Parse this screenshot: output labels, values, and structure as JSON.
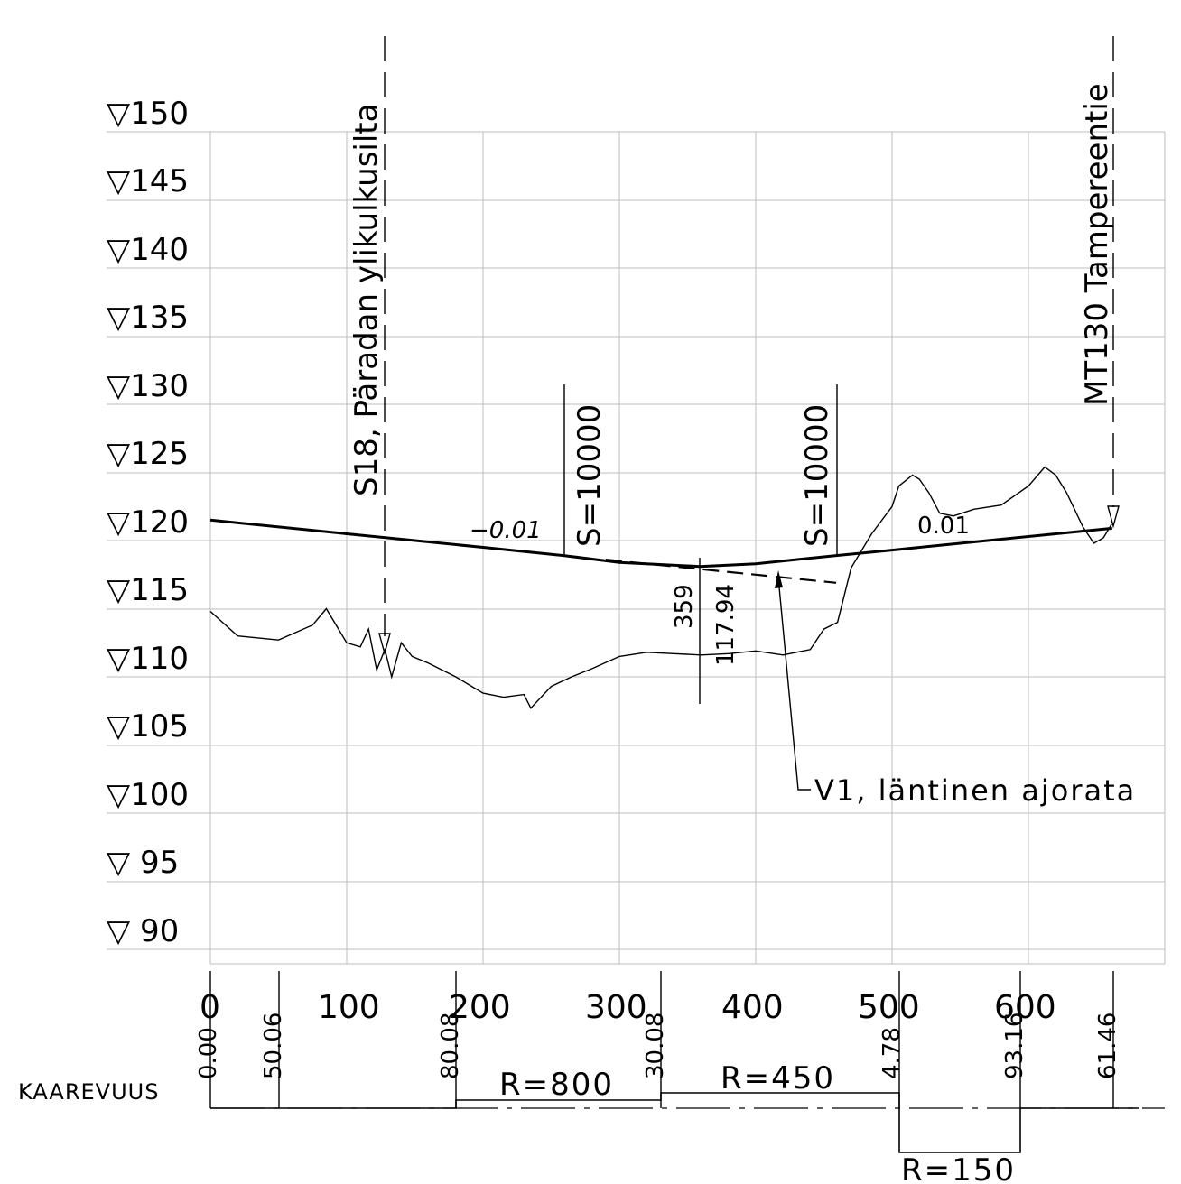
{
  "elevation_labels": [
    "▽150",
    "▽145",
    "▽140",
    "▽135",
    "▽130",
    "▽125",
    "▽120",
    "▽115",
    "▽110",
    "▽105",
    "▽100",
    "▽ 95",
    "▽ 90"
  ],
  "distance_labels": [
    "0",
    "100",
    "200",
    "300",
    "400",
    "500",
    "600"
  ],
  "station_labels": [
    "0.00",
    "50.06",
    "80.08",
    "30.08",
    "4.78",
    "93.16",
    "61.46"
  ],
  "vertical_labels": {
    "bridge": "S18, Päradan ylikulkusilta",
    "road": "MT130 Tampereentie"
  },
  "profile_labels": {
    "slope_left": "−0.01",
    "slope_right": "0.01",
    "curve_left": "S=10000",
    "curve_right": "S=10000",
    "low_station": "359",
    "low_elevation": "117.94",
    "line_name": "V1, läntinen ajorata"
  },
  "curvature": {
    "label": "KAAREVUUS",
    "r1": "R=800",
    "r2": "R=450",
    "r3": "R=150"
  },
  "chart_data": {
    "type": "line",
    "xlabel": "",
    "ylabel": "",
    "xlim": [
      0,
      665
    ],
    "ylim": [
      87,
      150
    ],
    "series": [
      {
        "name": "V1, läntinen ajorata",
        "x": [
          0,
          100,
          200,
          259,
          300,
          359,
          400,
          459,
          500,
          560,
          620,
          661.46
        ],
        "y": [
          121.5,
          120.5,
          119.5,
          118.9,
          118.4,
          118.1,
          118.3,
          118.9,
          119.3,
          119.9,
          120.5,
          120.9
        ]
      },
      {
        "name": "",
        "x": [
          0,
          20,
          50,
          75,
          85,
          100,
          110,
          116,
          122,
          128,
          133,
          140,
          148,
          160,
          180,
          200,
          215,
          230,
          235,
          250,
          265,
          280,
          300,
          320,
          340,
          360,
          380,
          400,
          420,
          440,
          450,
          460,
          470,
          485,
          500,
          505,
          515,
          520,
          527,
          535,
          545,
          560,
          580,
          600,
          612,
          620,
          628,
          640,
          648,
          655,
          661
        ],
        "y": [
          114.8,
          113.0,
          112.7,
          113.8,
          115.0,
          112.5,
          112.2,
          113.5,
          110.5,
          112.0,
          110.0,
          112.5,
          111.5,
          111.0,
          110.0,
          108.8,
          108.5,
          108.7,
          107.7,
          109.3,
          110.0,
          110.6,
          111.5,
          111.8,
          111.7,
          111.6,
          111.7,
          111.9,
          111.6,
          112.0,
          113.5,
          114.0,
          118.0,
          120.5,
          122.5,
          124.0,
          124.8,
          124.5,
          123.5,
          122.0,
          121.8,
          122.3,
          122.6,
          124.0,
          125.4,
          124.8,
          123.5,
          121.0,
          119.8,
          120.2,
          121.2
        ]
      },
      {
        "name": "",
        "x": [
          290,
          459
        ],
        "y": [
          118.6,
          116.9
        ]
      }
    ]
  }
}
